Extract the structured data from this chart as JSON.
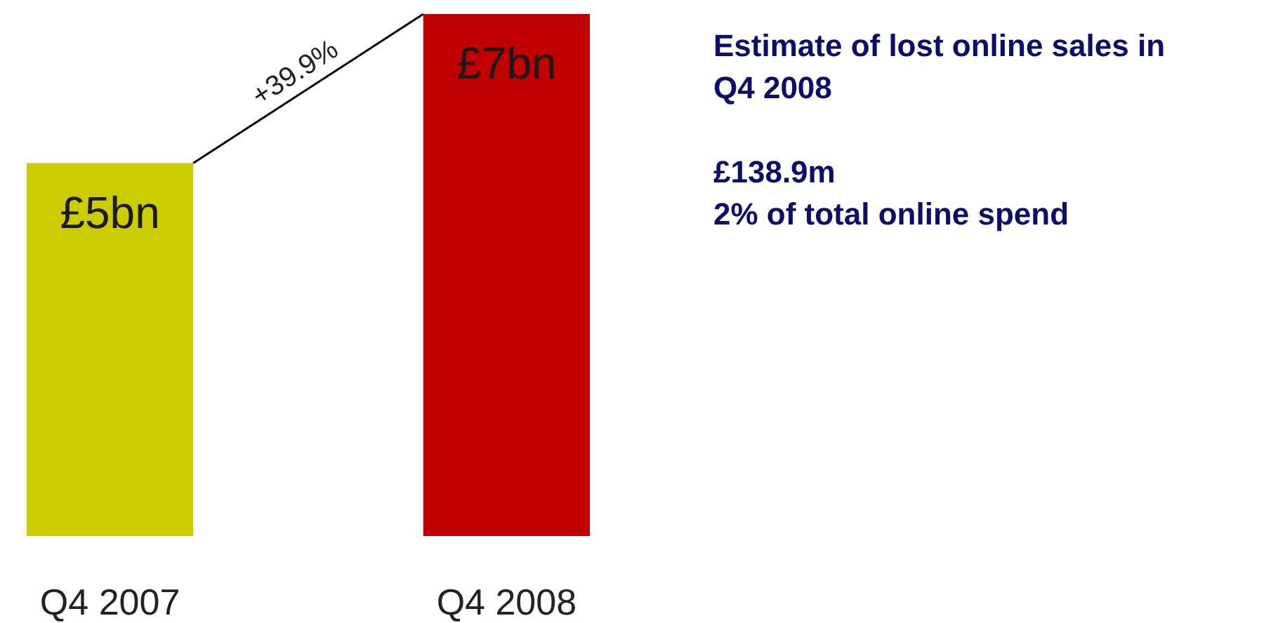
{
  "chart_data": {
    "type": "bar",
    "categories": [
      "Q4 2007",
      "Q4 2008"
    ],
    "values": [
      5,
      7
    ],
    "colors": [
      "#cccc00",
      "#c00000"
    ],
    "value_labels": [
      "£5bn",
      "£7bn"
    ],
    "annotations": [
      "+39.9%",
      "Estimate of lost online sales in Q4 2008",
      "£138.9m",
      "2% of total online spend"
    ]
  }
}
